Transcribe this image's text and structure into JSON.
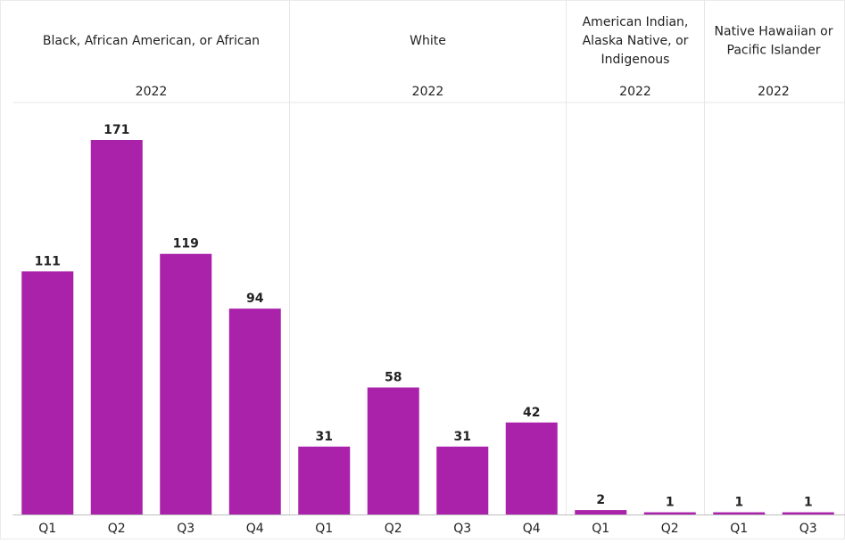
{
  "colors": {
    "bar": "#AA22AA",
    "divider": "#E6E6E6",
    "axis": "#BDBDBD",
    "text": "#222222",
    "frame": "#EBEBEB"
  },
  "chart_data": {
    "type": "bar",
    "ylim": [
      0,
      180
    ],
    "grid": false,
    "panels": [
      {
        "race_label": [
          "Black, African American, or African"
        ],
        "year": "2022",
        "categories": [
          "Q1",
          "Q2",
          "Q3",
          "Q4"
        ],
        "values": [
          111,
          171,
          119,
          94
        ]
      },
      {
        "race_label": [
          "White"
        ],
        "year": "2022",
        "categories": [
          "Q1",
          "Q2",
          "Q3",
          "Q4"
        ],
        "values": [
          31,
          58,
          31,
          42
        ]
      },
      {
        "race_label": [
          "American Indian,",
          "Alaska Native, or",
          "Indigenous"
        ],
        "year": "2022",
        "categories": [
          "Q1",
          "Q2"
        ],
        "values": [
          2,
          1
        ]
      },
      {
        "race_label": [
          "Native Hawaiian or",
          "Pacific Islander"
        ],
        "year": "2022",
        "categories": [
          "Q1",
          "Q3"
        ],
        "values": [
          1,
          1
        ]
      }
    ]
  }
}
